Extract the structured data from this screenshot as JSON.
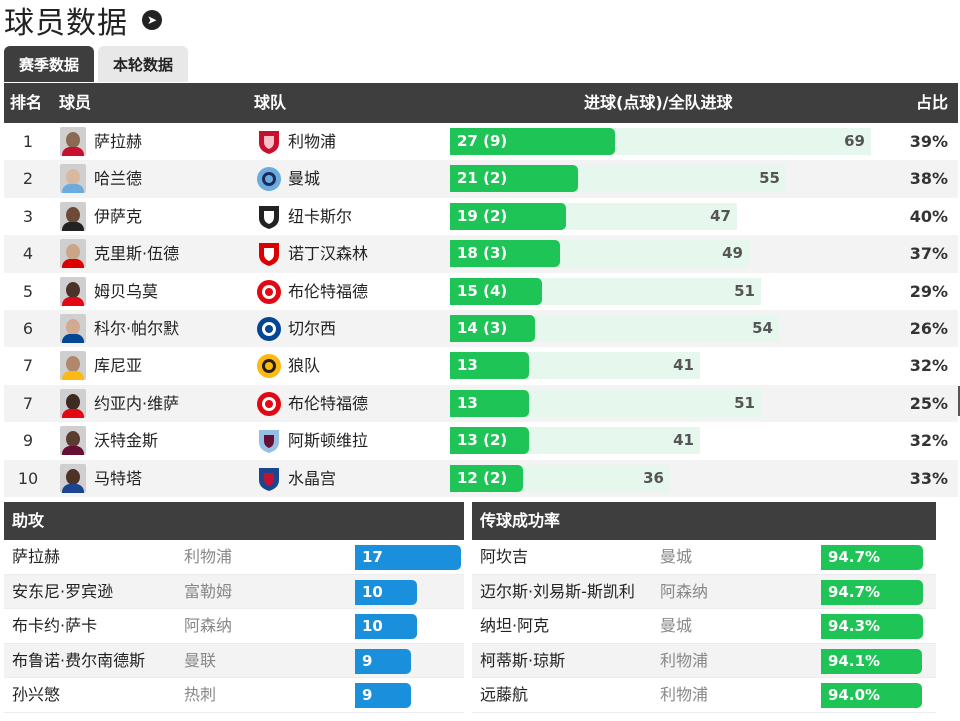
{
  "header": {
    "title": "球员数据",
    "arrow_icon": "arrow-right-circle-icon"
  },
  "tabs": [
    {
      "label": "赛季数据",
      "active": true
    },
    {
      "label": "本轮数据",
      "active": false
    }
  ],
  "scorers": {
    "columns": {
      "rank": "排名",
      "player": "球员",
      "team": "球队",
      "goals": "进球(点球)/全队进球",
      "share": "占比"
    },
    "rows": [
      {
        "rank": "1",
        "player": "萨拉赫",
        "team": "利物浦",
        "goals_label": "27 (9)",
        "goals": 27,
        "team_goals_label": "69",
        "team_goals": 69,
        "share": "39%",
        "skin": "#8a6a55",
        "shirt": "#c8102e",
        "crest": "liverpool-crest-icon"
      },
      {
        "rank": "2",
        "player": "哈兰德",
        "team": "曼城",
        "goals_label": "21 (2)",
        "goals": 21,
        "team_goals_label": "55",
        "team_goals": 55,
        "share": "38%",
        "skin": "#d9b8a0",
        "shirt": "#6cabdd",
        "crest": "man-city-crest-icon"
      },
      {
        "rank": "3",
        "player": "伊萨克",
        "team": "纽卡斯尔",
        "goals_label": "19 (2)",
        "goals": 19,
        "team_goals_label": "47",
        "team_goals": 47,
        "share": "40%",
        "skin": "#6b4a38",
        "shirt": "#222222",
        "crest": "newcastle-crest-icon"
      },
      {
        "rank": "4",
        "player": "克里斯·伍德",
        "team": "诺丁汉森林",
        "goals_label": "18 (3)",
        "goals": 18,
        "team_goals_label": "49",
        "team_goals": 49,
        "share": "37%",
        "skin": "#c9a58a",
        "shirt": "#dd0000",
        "crest": "nottingham-forest-crest-icon"
      },
      {
        "rank": "5",
        "player": "姆贝乌莫",
        "team": "布伦特福德",
        "goals_label": "15 (4)",
        "goals": 15,
        "team_goals_label": "51",
        "team_goals": 51,
        "share": "29%",
        "skin": "#4a3328",
        "shirt": "#e30613",
        "crest": "brentford-crest-icon"
      },
      {
        "rank": "6",
        "player": "科尔·帕尔默",
        "team": "切尔西",
        "goals_label": "14 (3)",
        "goals": 14,
        "team_goals_label": "54",
        "team_goals": 54,
        "share": "26%",
        "skin": "#d4a992",
        "shirt": "#034694",
        "crest": "chelsea-crest-icon"
      },
      {
        "rank": "7",
        "player": "库尼亚",
        "team": "狼队",
        "goals_label": "13",
        "goals": 13,
        "team_goals_label": "41",
        "team_goals": 41,
        "share": "32%",
        "skin": "#b0886e",
        "shirt": "#fdb913",
        "crest": "wolves-crest-icon"
      },
      {
        "rank": "7",
        "player": "约亚内·维萨",
        "team": "布伦特福德",
        "goals_label": "13",
        "goals": 13,
        "team_goals_label": "51",
        "team_goals": 51,
        "share": "25%",
        "skin": "#3d2a20",
        "shirt": "#e30613",
        "crest": "brentford-crest-icon"
      },
      {
        "rank": "9",
        "player": "沃特金斯",
        "team": "阿斯顿维拉",
        "goals_label": "13 (2)",
        "goals": 13,
        "team_goals_label": "41",
        "team_goals": 41,
        "share": "32%",
        "skin": "#5a3d2e",
        "shirt": "#670e36",
        "crest": "aston-villa-crest-icon"
      },
      {
        "rank": "10",
        "player": "马特塔",
        "team": "水晶宫",
        "goals_label": "12 (2)",
        "goals": 12,
        "team_goals_label": "36",
        "team_goals": 36,
        "share": "33%",
        "skin": "#4d3326",
        "shirt": "#1b458f",
        "crest": "crystal-palace-crest-icon"
      }
    ]
  },
  "assists": {
    "title": "助攻",
    "rows": [
      {
        "player": "萨拉赫",
        "team": "利物浦",
        "value": "17"
      },
      {
        "player": "安东尼·罗宾逊",
        "team": "富勒姆",
        "value": "10"
      },
      {
        "player": "布卡约·萨卡",
        "team": "阿森纳",
        "value": "10"
      },
      {
        "player": "布鲁诺·费尔南德斯",
        "team": "曼联",
        "value": "9"
      },
      {
        "player": "孙兴慜",
        "team": "热刺",
        "value": "9"
      }
    ]
  },
  "passing": {
    "title": "传球成功率",
    "rows": [
      {
        "player": "阿坎吉",
        "team": "曼城",
        "value": "94.7%"
      },
      {
        "player": "迈尔斯·刘易斯-斯凯利",
        "team": "阿森纳",
        "value": "94.7%"
      },
      {
        "player": "纳坦·阿克",
        "team": "曼城",
        "value": "94.3%"
      },
      {
        "player": "柯蒂斯·琼斯",
        "team": "利物浦",
        "value": "94.1%"
      },
      {
        "player": "远藤航",
        "team": "利物浦",
        "value": "94.0%"
      }
    ]
  },
  "colors": {
    "header_bg": "#3e3e3e",
    "goals_bar": "#1fc456",
    "goals_track": "#e6f8ee",
    "assist_bar": "#1a8fdc",
    "pass_bar": "#1fc456"
  }
}
